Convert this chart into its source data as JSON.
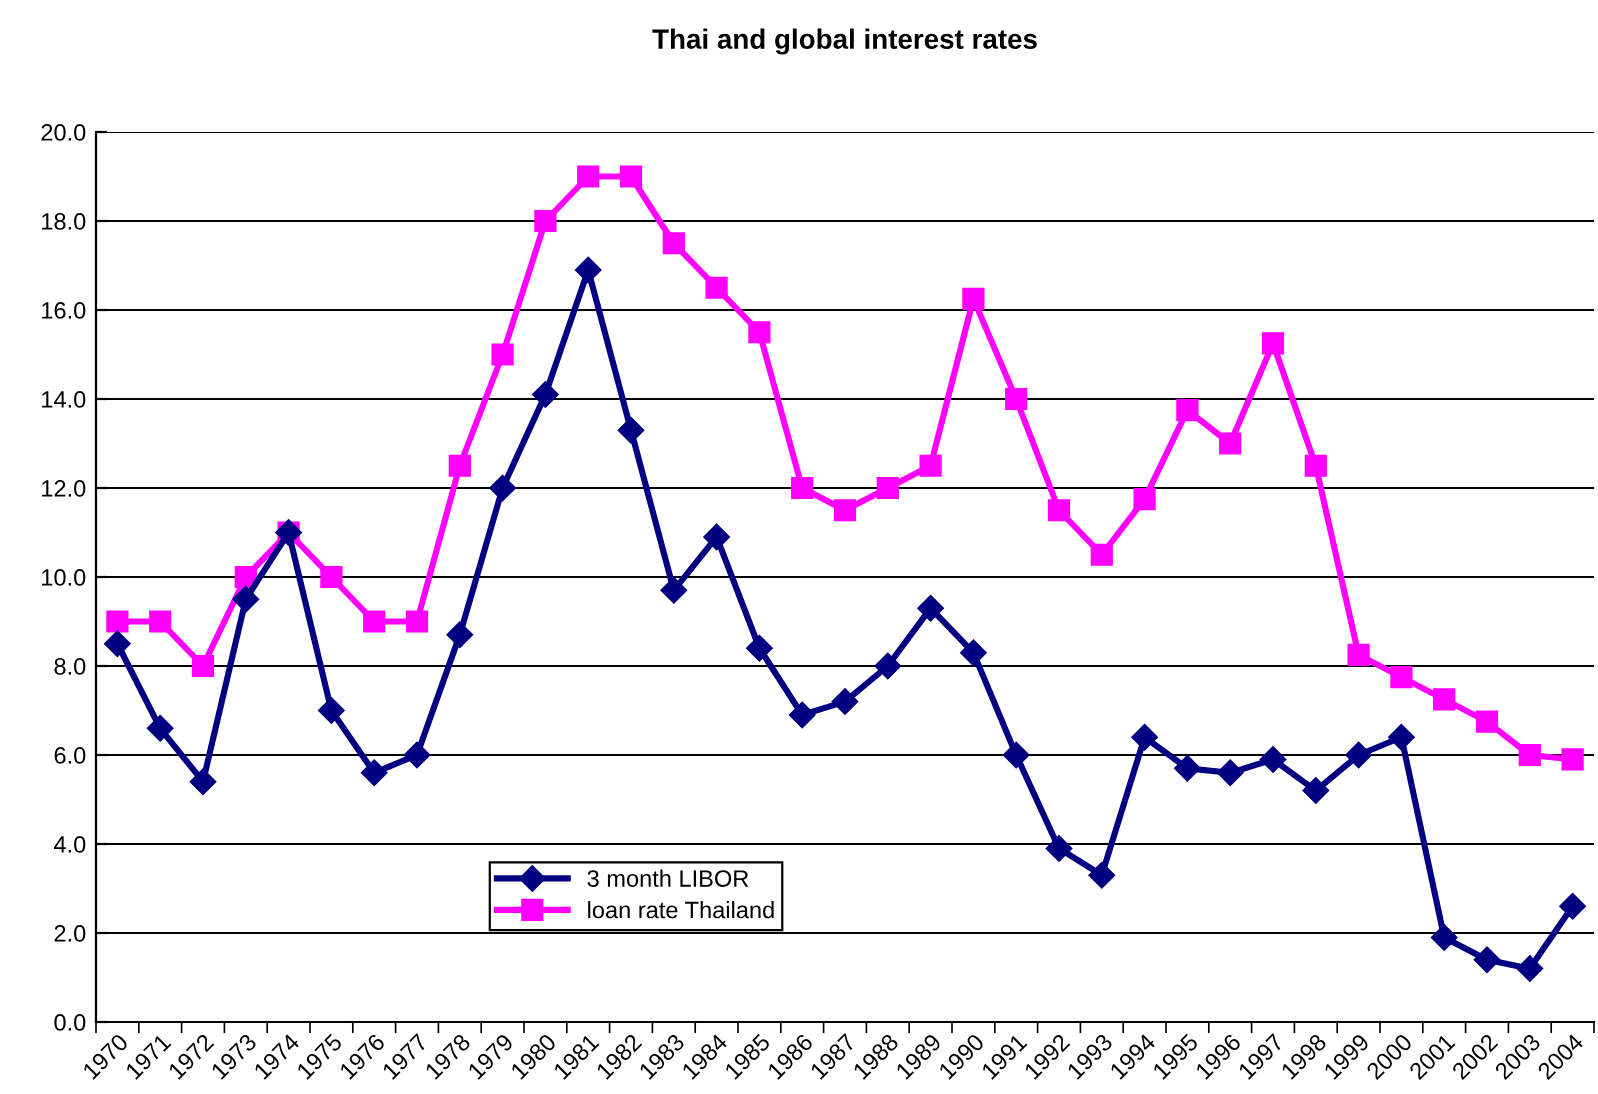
{
  "chart_data": {
    "type": "line",
    "title": "Thai and global interest rates",
    "categories": [
      "1970",
      "1971",
      "1972",
      "1973",
      "1974",
      "1975",
      "1976",
      "1977",
      "1978",
      "1979",
      "1980",
      "1981",
      "1982",
      "1983",
      "1984",
      "1985",
      "1986",
      "1987",
      "1988",
      "1989",
      "1990",
      "1991",
      "1992",
      "1993",
      "1994",
      "1995",
      "1996",
      "1997",
      "1998",
      "1999",
      "2000",
      "2001",
      "2002",
      "2003",
      "2004"
    ],
    "series": [
      {
        "name": "3 month LIBOR",
        "color": "#000080",
        "marker": "diamond",
        "values": [
          8.5,
          6.6,
          5.4,
          9.5,
          11.0,
          7.0,
          5.6,
          6.0,
          8.7,
          12.0,
          14.1,
          16.9,
          13.3,
          9.7,
          10.9,
          8.4,
          6.9,
          7.2,
          8.0,
          9.3,
          8.3,
          6.0,
          3.9,
          3.3,
          6.4,
          5.7,
          5.6,
          5.9,
          5.2,
          6.0,
          6.4,
          1.9,
          1.4,
          1.2,
          2.6
        ]
      },
      {
        "name": "loan rate Thailand",
        "color": "#ff00ff",
        "marker": "square",
        "values": [
          9.0,
          9.0,
          8.0,
          10.0,
          11.0,
          10.0,
          9.0,
          9.0,
          12.5,
          15.0,
          18.0,
          19.0,
          19.0,
          17.5,
          16.5,
          15.5,
          12.0,
          11.5,
          12.0,
          12.5,
          16.25,
          14.0,
          11.5,
          10.5,
          11.75,
          13.75,
          13.0,
          15.25,
          12.5,
          8.25,
          7.75,
          7.25,
          6.75,
          6.0,
          5.9
        ]
      }
    ],
    "ylim": [
      0,
      20
    ],
    "yticks": [
      {
        "value": 0,
        "label": "0.0"
      },
      {
        "value": 2,
        "label": "2.0"
      },
      {
        "value": 4,
        "label": "4.0"
      },
      {
        "value": 6,
        "label": "6.0"
      },
      {
        "value": 8,
        "label": "8.0"
      },
      {
        "value": 10,
        "label": "10.0"
      },
      {
        "value": 12,
        "label": "12.0"
      },
      {
        "value": 14,
        "label": "14.0"
      },
      {
        "value": 16,
        "label": "16.0"
      },
      {
        "value": 18,
        "label": "18.0"
      },
      {
        "value": 20,
        "label": "20.0"
      }
    ],
    "grid": "y",
    "legend": "bottom left",
    "line_style": "solid"
  }
}
